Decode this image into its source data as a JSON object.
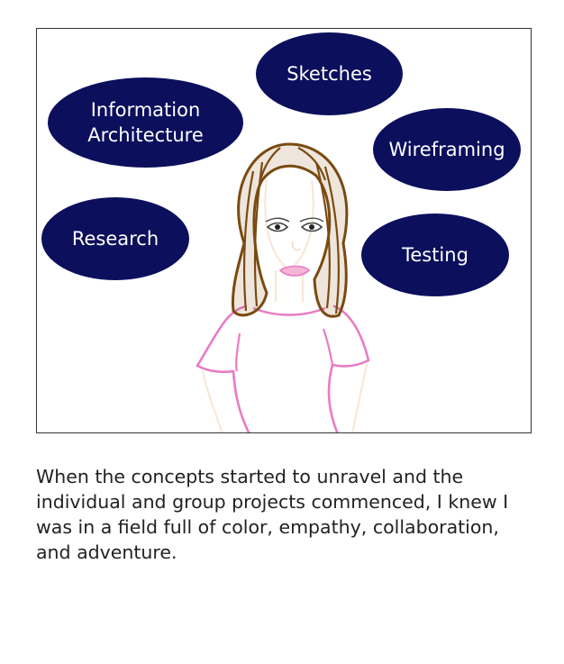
{
  "bubble_color": "#0b0f5c",
  "bubbles": {
    "sketches": "Sketches",
    "info_line1": "Information",
    "info_line2": "Architecture",
    "wireframing": "Wireframing",
    "research": "Research",
    "testing": "Testing"
  },
  "caption": "When the concepts started to unravel and the individual and group projects commenced, I knew I was in a field full of color, empathy, collaboration, and adventure."
}
